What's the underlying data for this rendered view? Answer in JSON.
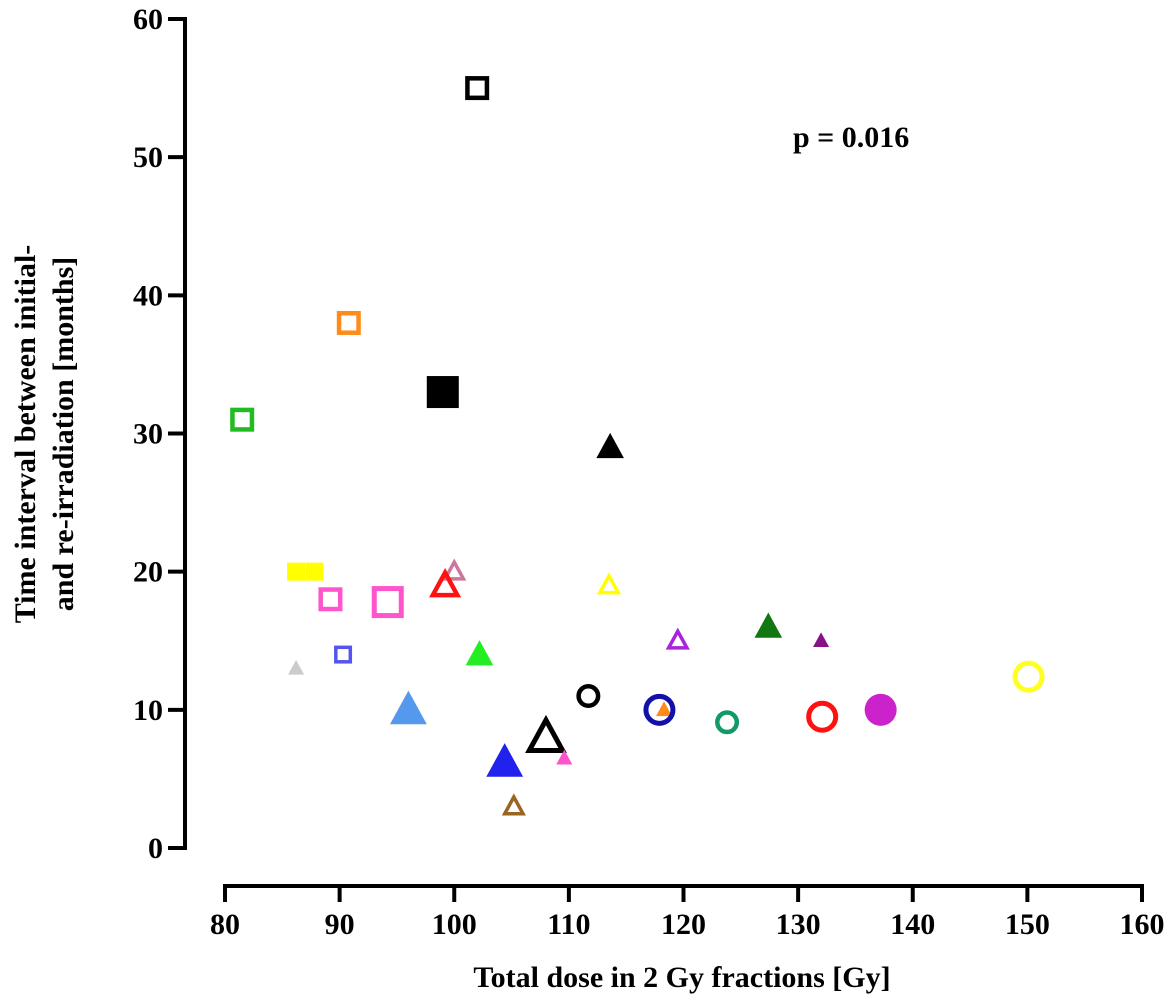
{
  "chart_data": {
    "type": "scatter",
    "xlabel": "Total dose in 2 Gy fractions [Gy]",
    "ylabel_lines": [
      "Time interval between initial-",
      "and re-irradiation [months]"
    ],
    "annotation": "p = 0.016",
    "xlim": [
      80,
      160
    ],
    "ylim": [
      0,
      60
    ],
    "xticks": [
      "80",
      "90",
      "100",
      "110",
      "120",
      "130",
      "140",
      "150",
      "160"
    ],
    "yticks": [
      "0",
      "10",
      "20",
      "30",
      "40",
      "50",
      "60"
    ],
    "grid": false,
    "points": [
      {
        "x": 102,
        "y": 55,
        "marker": "square",
        "filled": false,
        "color": "#000000",
        "size": "medium"
      },
      {
        "x": 90.8,
        "y": 38,
        "marker": "square",
        "filled": false,
        "color": "#ff8c1a",
        "size": "medium"
      },
      {
        "x": 99,
        "y": 33,
        "marker": "square",
        "filled": true,
        "color": "#000000",
        "size": "large"
      },
      {
        "x": 81.5,
        "y": 31,
        "marker": "square",
        "filled": false,
        "color": "#22bb22",
        "size": "medium"
      },
      {
        "x": 86.2,
        "y": 20,
        "marker": "square",
        "filled": true,
        "color": "#ffff00",
        "size": "small"
      },
      {
        "x": 87.8,
        "y": 20,
        "marker": "square",
        "filled": true,
        "color": "#ffff00",
        "size": "small"
      },
      {
        "x": 89.2,
        "y": 18,
        "marker": "square",
        "filled": false,
        "color": "#ff55cc",
        "size": "medium"
      },
      {
        "x": 94.2,
        "y": 17.8,
        "marker": "square",
        "filled": false,
        "color": "#ff55cc",
        "size": "large"
      },
      {
        "x": 90.3,
        "y": 14,
        "marker": "square",
        "filled": false,
        "color": "#5555ee",
        "size": "small"
      },
      {
        "x": 113.6,
        "y": 29,
        "marker": "triangle",
        "filled": true,
        "color": "#000000",
        "size": "medium"
      },
      {
        "x": 100,
        "y": 20,
        "marker": "triangle",
        "filled": false,
        "color": "#cc7799",
        "size": "small"
      },
      {
        "x": 99.2,
        "y": 19,
        "marker": "triangle",
        "filled": false,
        "color": "#ff1111",
        "size": "medium"
      },
      {
        "x": 113.5,
        "y": 19,
        "marker": "triangle",
        "filled": false,
        "color": "#ffff00",
        "size": "small"
      },
      {
        "x": 127.4,
        "y": 16,
        "marker": "triangle",
        "filled": true,
        "color": "#117711",
        "size": "medium"
      },
      {
        "x": 132,
        "y": 15,
        "marker": "triangle",
        "filled": true,
        "color": "#881188",
        "size": "xsmall"
      },
      {
        "x": 119.5,
        "y": 15,
        "marker": "triangle",
        "filled": false,
        "color": "#aa22dd",
        "size": "small"
      },
      {
        "x": 102.2,
        "y": 14,
        "marker": "triangle",
        "filled": true,
        "color": "#22ee22",
        "size": "medium"
      },
      {
        "x": 86.2,
        "y": 13,
        "marker": "triangle",
        "filled": true,
        "color": "#cccccc",
        "size": "xsmall"
      },
      {
        "x": 96,
        "y": 10,
        "marker": "triangle",
        "filled": true,
        "color": "#5599ee",
        "size": "large"
      },
      {
        "x": 118.3,
        "y": 10,
        "marker": "triangle",
        "filled": true,
        "color": "#ff8c1a",
        "size": "xsmall"
      },
      {
        "x": 108,
        "y": 8,
        "marker": "triangle",
        "filled": false,
        "color": "#000000",
        "size": "large"
      },
      {
        "x": 104.4,
        "y": 6.2,
        "marker": "triangle",
        "filled": true,
        "color": "#2222ee",
        "size": "large"
      },
      {
        "x": 109.6,
        "y": 6.5,
        "marker": "triangle",
        "filled": true,
        "color": "#ff55cc",
        "size": "xsmall"
      },
      {
        "x": 105.2,
        "y": 3,
        "marker": "triangle",
        "filled": false,
        "color": "#996622",
        "size": "small"
      },
      {
        "x": 111.7,
        "y": 11,
        "marker": "circle",
        "filled": false,
        "color": "#000000",
        "size": "medium"
      },
      {
        "x": 117.9,
        "y": 10,
        "marker": "circle",
        "filled": false,
        "color": "#1111aa",
        "size": "large"
      },
      {
        "x": 123.8,
        "y": 9.1,
        "marker": "circle",
        "filled": false,
        "color": "#119966",
        "size": "medium"
      },
      {
        "x": 132.1,
        "y": 9.5,
        "marker": "circle",
        "filled": false,
        "color": "#ff1111",
        "size": "large"
      },
      {
        "x": 137.2,
        "y": 10,
        "marker": "circle",
        "filled": true,
        "color": "#cc22cc",
        "size": "large"
      },
      {
        "x": 150.1,
        "y": 12.4,
        "marker": "circle",
        "filled": false,
        "color": "#ffff22",
        "size": "large"
      }
    ]
  }
}
